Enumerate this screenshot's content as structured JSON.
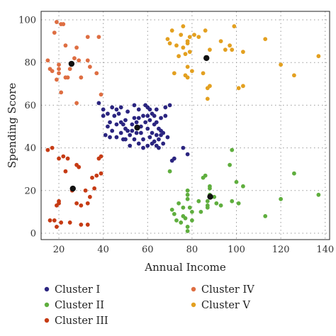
{
  "chart_data": {
    "type": "scatter",
    "xlabel": "Annual Income",
    "ylabel": "Spending Score",
    "xlim": [
      12,
      142
    ],
    "ylim": [
      -3,
      104
    ],
    "xticks": [
      20,
      40,
      60,
      80,
      100,
      120,
      140
    ],
    "yticks": [
      0,
      20,
      40,
      60,
      80,
      100
    ],
    "grid": true,
    "legend_position": "bottom",
    "series": [
      {
        "name": "Cluster I",
        "color": "#2b2580",
        "points": [
          [
            38,
            61
          ],
          [
            40,
            58
          ],
          [
            40,
            55
          ],
          [
            42,
            56
          ],
          [
            43,
            52
          ],
          [
            44,
            48
          ],
          [
            45,
            55
          ],
          [
            46,
            51
          ],
          [
            47,
            56
          ],
          [
            48,
            59
          ],
          [
            48,
            47
          ],
          [
            49,
            44
          ],
          [
            50,
            53
          ],
          [
            50,
            49
          ],
          [
            51,
            57
          ],
          [
            52,
            46
          ],
          [
            53,
            51
          ],
          [
            54,
            60
          ],
          [
            54,
            54
          ],
          [
            55,
            47
          ],
          [
            56,
            42
          ],
          [
            56,
            58
          ],
          [
            57,
            50
          ],
          [
            58,
            44
          ],
          [
            58,
            55
          ],
          [
            59,
            60
          ],
          [
            60,
            49
          ],
          [
            60,
            41
          ],
          [
            61,
            53
          ],
          [
            62,
            47
          ],
          [
            62,
            56
          ],
          [
            63,
            43
          ],
          [
            63,
            51
          ],
          [
            64,
            58
          ],
          [
            64,
            46
          ],
          [
            65,
            40
          ],
          [
            65,
            49
          ],
          [
            66,
            54
          ],
          [
            67,
            42
          ],
          [
            67,
            47
          ],
          [
            68,
            59
          ],
          [
            69,
            45
          ],
          [
            70,
            60
          ],
          [
            41,
            46
          ],
          [
            46,
            45
          ],
          [
            50,
            44
          ],
          [
            52,
            41
          ],
          [
            58,
            40
          ],
          [
            60,
            59
          ],
          [
            61,
            45
          ],
          [
            62,
            42
          ],
          [
            63,
            55
          ],
          [
            64,
            52
          ],
          [
            65,
            44
          ],
          [
            66,
            46
          ],
          [
            55,
            52
          ],
          [
            53,
            48
          ],
          [
            56,
            54
          ],
          [
            44,
            59
          ],
          [
            42,
            50
          ],
          [
            57,
            47
          ],
          [
            59,
            52
          ],
          [
            66,
            48
          ],
          [
            61,
            58
          ],
          [
            48,
            52
          ],
          [
            51,
            48
          ],
          [
            54,
            44
          ],
          [
            68,
            55
          ],
          [
            64,
            41
          ],
          [
            60,
            55
          ],
          [
            72,
            35
          ],
          [
            71,
            34
          ],
          [
            76,
            40
          ],
          [
            78,
            37
          ],
          [
            46,
            58
          ],
          [
            49,
            51
          ],
          [
            43,
            45
          ]
        ]
      },
      {
        "name": "Cluster II",
        "color": "#5fae3e",
        "points": [
          [
            70,
            29
          ],
          [
            71,
            11
          ],
          [
            72,
            9
          ],
          [
            73,
            6
          ],
          [
            74,
            14
          ],
          [
            75,
            5
          ],
          [
            76,
            12
          ],
          [
            77,
            7
          ],
          [
            78,
            3
          ],
          [
            78,
            1
          ],
          [
            78,
            16
          ],
          [
            78,
            18
          ],
          [
            78,
            20
          ],
          [
            80,
            10
          ],
          [
            80,
            6
          ],
          [
            85,
            26
          ],
          [
            86,
            27
          ],
          [
            87,
            15
          ],
          [
            87,
            13
          ],
          [
            87,
            12
          ],
          [
            88,
            22
          ],
          [
            88,
            18
          ],
          [
            88,
            21
          ],
          [
            91,
            14
          ],
          [
            93,
            13
          ],
          [
            97,
            32
          ],
          [
            98,
            39
          ],
          [
            98,
            15
          ],
          [
            100,
            24
          ],
          [
            101,
            14
          ],
          [
            103,
            22
          ],
          [
            113,
            8
          ],
          [
            120,
            16
          ],
          [
            126,
            28
          ],
          [
            137,
            18
          ],
          [
            79,
            12
          ],
          [
            84,
            10
          ],
          [
            83,
            15
          ],
          [
            90,
            17
          ],
          [
            76,
            8
          ]
        ]
      },
      {
        "name": "Cluster III",
        "color": "#c63b14",
        "points": [
          [
            15,
            39
          ],
          [
            16,
            6
          ],
          [
            17,
            40
          ],
          [
            18,
            6
          ],
          [
            19,
            3
          ],
          [
            19,
            13
          ],
          [
            20,
            15
          ],
          [
            20,
            14
          ],
          [
            20,
            35
          ],
          [
            21,
            5
          ],
          [
            22,
            36
          ],
          [
            23,
            29
          ],
          [
            24,
            35
          ],
          [
            25,
            5
          ],
          [
            26,
            20
          ],
          [
            28,
            14
          ],
          [
            28,
            32
          ],
          [
            29,
            31
          ],
          [
            30,
            4
          ],
          [
            33,
            4
          ],
          [
            33,
            14
          ],
          [
            34,
            17
          ],
          [
            35,
            26
          ],
          [
            37,
            27
          ],
          [
            38,
            35
          ],
          [
            39,
            36
          ],
          [
            39,
            28
          ],
          [
            30,
            13
          ],
          [
            32,
            20
          ],
          [
            36,
            21
          ]
        ]
      },
      {
        "name": "Cluster IV",
        "color": "#de6e42",
        "points": [
          [
            15,
            81
          ],
          [
            16,
            77
          ],
          [
            17,
            76
          ],
          [
            18,
            94
          ],
          [
            19,
            99
          ],
          [
            19,
            72
          ],
          [
            20,
            77
          ],
          [
            20,
            79
          ],
          [
            21,
            66
          ],
          [
            21,
            98
          ],
          [
            22,
            98
          ],
          [
            23,
            73
          ],
          [
            24,
            73
          ],
          [
            25,
            77
          ],
          [
            27,
            82
          ],
          [
            28,
            61
          ],
          [
            28,
            87
          ],
          [
            29,
            81
          ],
          [
            30,
            73
          ],
          [
            33,
            92
          ],
          [
            33,
            81
          ],
          [
            34,
            78
          ],
          [
            37,
            75
          ],
          [
            38,
            92
          ],
          [
            39,
            65
          ],
          [
            20,
            75
          ],
          [
            23,
            88
          ]
        ]
      },
      {
        "name": "Cluster V",
        "color": "#e3a020",
        "points": [
          [
            69,
            91
          ],
          [
            70,
            89
          ],
          [
            71,
            95
          ],
          [
            72,
            75
          ],
          [
            73,
            88
          ],
          [
            74,
            83
          ],
          [
            75,
            93
          ],
          [
            76,
            87
          ],
          [
            76,
            97
          ],
          [
            77,
            74
          ],
          [
            77,
            84
          ],
          [
            78,
            90
          ],
          [
            78,
            89
          ],
          [
            78,
            78
          ],
          [
            78,
            73
          ],
          [
            79,
            92
          ],
          [
            80,
            76
          ],
          [
            81,
            93
          ],
          [
            85,
            75
          ],
          [
            86,
            95
          ],
          [
            87,
            63
          ],
          [
            87,
            68
          ],
          [
            88,
            86
          ],
          [
            88,
            69
          ],
          [
            93,
            90
          ],
          [
            95,
            86
          ],
          [
            97,
            88
          ],
          [
            98,
            86
          ],
          [
            99,
            97
          ],
          [
            101,
            68
          ],
          [
            103,
            85
          ],
          [
            103,
            69
          ],
          [
            113,
            91
          ],
          [
            120,
            79
          ],
          [
            126,
            74
          ],
          [
            137,
            83
          ],
          [
            79,
            85
          ],
          [
            83,
            92
          ]
        ]
      }
    ],
    "centroids": [
      [
        55.3,
        49.5
      ],
      [
        88.2,
        17.1
      ],
      [
        26.3,
        20.9
      ],
      [
        25.7,
        79.4
      ],
      [
        86.5,
        82.1
      ]
    ],
    "centroid_color": "#111111"
  }
}
